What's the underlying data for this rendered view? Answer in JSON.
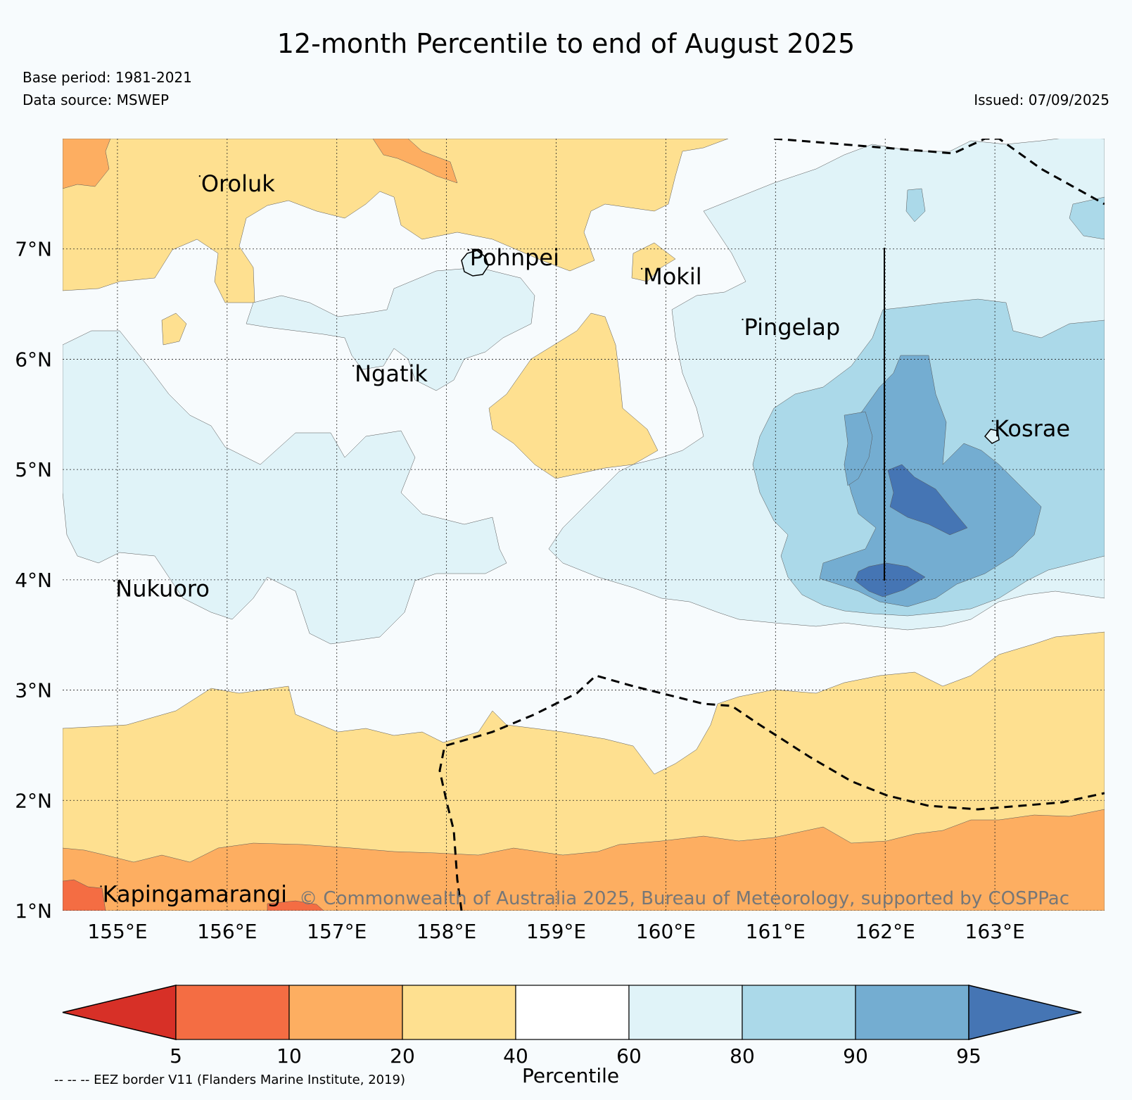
{
  "title": "12-month Percentile to end of August 2025",
  "base_period": "Base period: 1981-2021",
  "data_source": "Data source: MSWEP",
  "issued": "Issued: 07/09/2025",
  "copyright": "© Commonwealth of Australia 2025, Bureau of Meteorology, supported by COSPPac",
  "map": {
    "lon_range": [
      154.5,
      164.0
    ],
    "lat_range": [
      1.0,
      8.0
    ],
    "lon_ticks": [
      {
        "value": 155,
        "label": "155°E"
      },
      {
        "value": 156,
        "label": "156°E"
      },
      {
        "value": 157,
        "label": "157°E"
      },
      {
        "value": 158,
        "label": "158°E"
      },
      {
        "value": 159,
        "label": "159°E"
      },
      {
        "value": 160,
        "label": "160°E"
      },
      {
        "value": 161,
        "label": "161°E"
      },
      {
        "value": 162,
        "label": "162°E"
      },
      {
        "value": 163,
        "label": "163°E"
      }
    ],
    "lat_ticks": [
      {
        "value": 1,
        "label": "1°N"
      },
      {
        "value": 2,
        "label": "2°N"
      },
      {
        "value": 3,
        "label": "3°N"
      },
      {
        "value": 4,
        "label": "4°N"
      },
      {
        "value": 5,
        "label": "5°N"
      },
      {
        "value": 6,
        "label": "6°N"
      },
      {
        "value": 7,
        "label": "7°N"
      }
    ],
    "places": [
      {
        "name": "Oroluk",
        "lon": 155.75,
        "lat": 7.52
      },
      {
        "name": "Pohnpei",
        "lon": 158.2,
        "lat": 6.85
      },
      {
        "name": "Mokil",
        "lon": 159.78,
        "lat": 6.68
      },
      {
        "name": "Pingelap",
        "lon": 160.7,
        "lat": 6.22
      },
      {
        "name": "Ngatik",
        "lon": 157.15,
        "lat": 5.8
      },
      {
        "name": "Kosrae",
        "lon": 162.98,
        "lat": 5.3
      },
      {
        "name": "Nukuoro",
        "lon": 154.97,
        "lat": 3.85
      },
      {
        "name": "Kapingamarangi",
        "lon": 154.85,
        "lat": 1.08
      }
    ]
  },
  "colorbar": {
    "label": "Percentile",
    "ticks": [
      "5",
      "10",
      "20",
      "40",
      "60",
      "80",
      "90",
      "95"
    ],
    "colors": [
      "#d73027",
      "#f46d43",
      "#fdae61",
      "#fee090",
      "#ffffff",
      "#e0f3f8",
      "#abd9e9",
      "#74add1",
      "#4575b4"
    ]
  },
  "eez_note": "-- -- -- EEZ border V11 (Flanders Marine Institute, 2019)"
}
